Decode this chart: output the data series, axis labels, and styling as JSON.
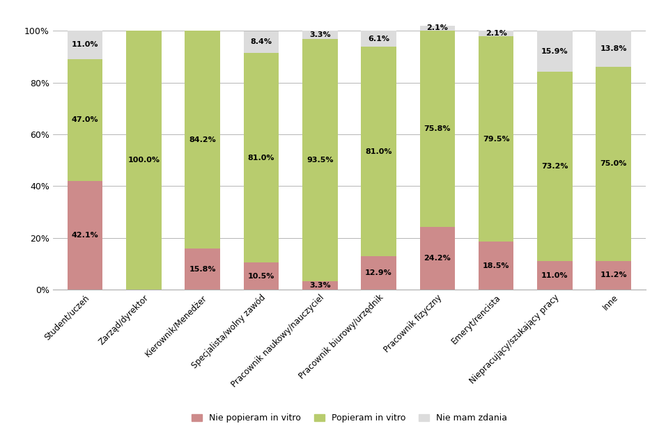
{
  "categories": [
    "Student/uczeń",
    "Zarząd/dyrektor",
    "Kierownik/Menedżer",
    "Specjalista/wolny zawód",
    "Pracownik naukowy/nauczyciel",
    "Pracownik biurowy/urzędnik",
    "Pracownik fizyczny",
    "Emeryt/rencista",
    "Niepracujący/szukający pracy",
    "Inne"
  ],
  "nie_popieram": [
    42.1,
    0.0,
    15.8,
    10.5,
    3.3,
    12.9,
    24.2,
    18.5,
    11.0,
    11.2
  ],
  "popieram": [
    47.0,
    100.0,
    84.2,
    81.0,
    93.5,
    81.0,
    75.8,
    79.5,
    73.2,
    75.0
  ],
  "nie_mam_zdania": [
    11.0,
    0.0,
    0.0,
    8.4,
    3.3,
    6.1,
    2.1,
    2.1,
    15.9,
    13.8
  ],
  "color_nie_popieram": "#cd8b8b",
  "color_popieram": "#b8cc6e",
  "color_nie_mam_zdania": "#dcdcdc",
  "legend_labels": [
    "Nie popieram in vitro",
    "Popieram in vitro",
    "Nie mam zdania"
  ],
  "bar_width": 0.6,
  "figsize": [
    9.46,
    6.12
  ],
  "dpi": 100,
  "ylim_max": 107
}
